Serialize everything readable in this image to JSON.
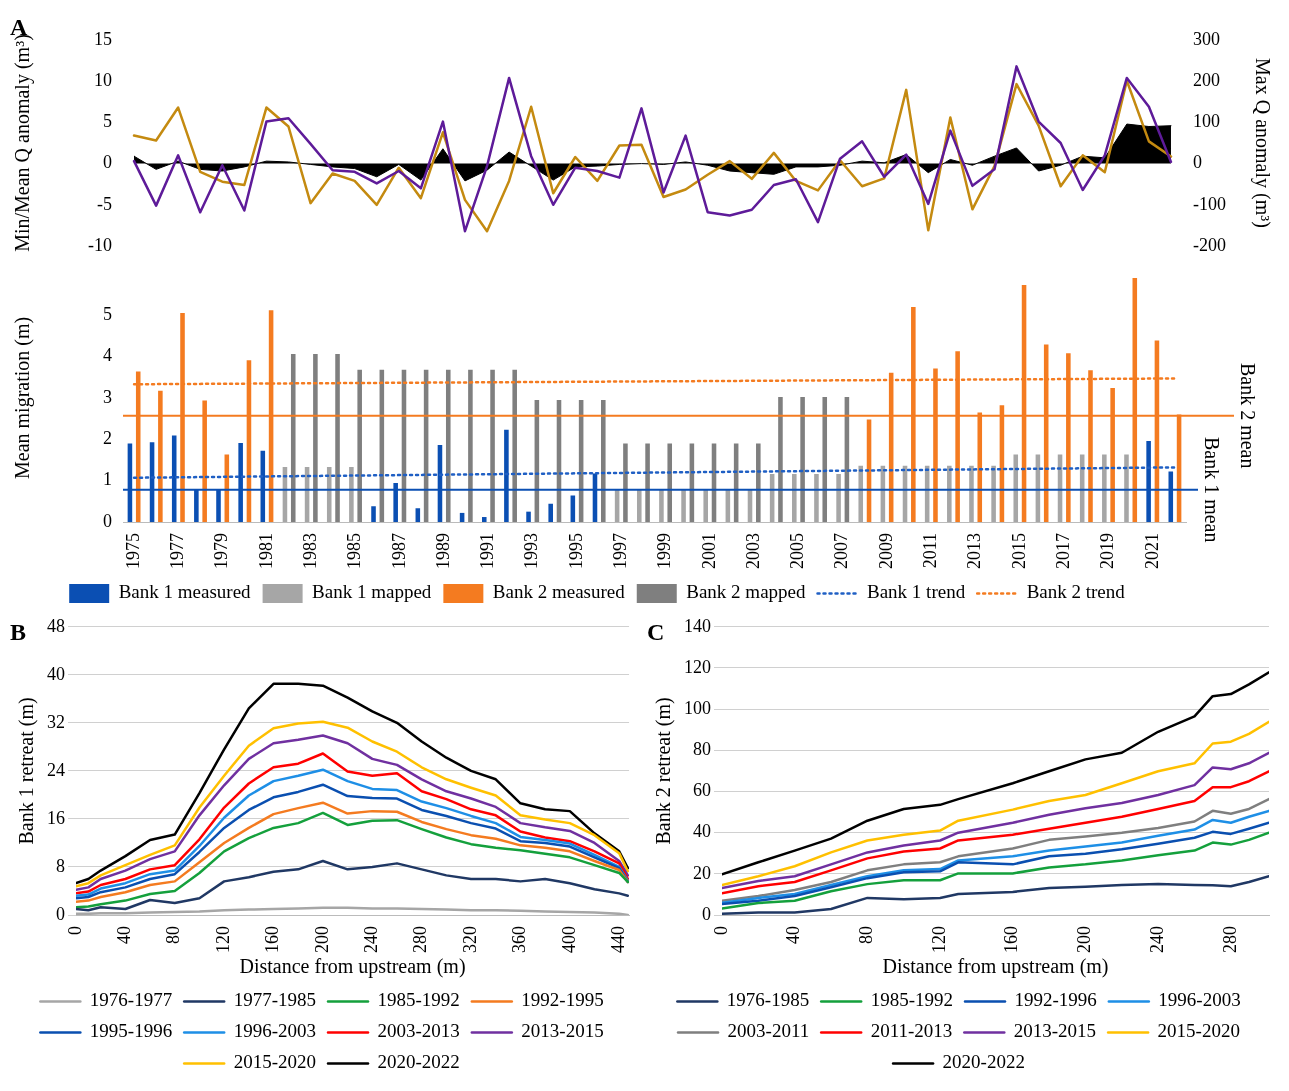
{
  "chart_data": [
    {
      "type": "line",
      "title": "A",
      "ylabel": "Min/Mean Q anomaly (m³)",
      "y2label": "Max Q anomaly (m³)",
      "categories": [
        null,
        null,
        null,
        null,
        null,
        null,
        null,
        null,
        null,
        null,
        null,
        null,
        null,
        null,
        null,
        null,
        null,
        null,
        null,
        null,
        null,
        null,
        null,
        null,
        null,
        null,
        null,
        null,
        null,
        null,
        null,
        null,
        null,
        null,
        null,
        null,
        null,
        null,
        null,
        null,
        null,
        null,
        null,
        null,
        null,
        null,
        null,
        null
      ],
      "series": [
        {
          "type": "area",
          "color": "#000000",
          "values": [
            0.9,
            -0.7,
            0.3,
            -0.7,
            -0.9,
            -0.4,
            0.3,
            0.2,
            -0.1,
            -0.4,
            -0.6,
            -1.6,
            -0.1,
            -2,
            1.8,
            -2.1,
            -0.8,
            1.4,
            -0.3,
            -2,
            -0.4,
            -0.3,
            -0.1,
            0,
            -0.1,
            0.2,
            -0.2,
            -0.9,
            -1.1,
            -1.3,
            -0.4,
            -0.4,
            -0.2,
            0.3,
            0.1,
            1.1,
            -1.1,
            0.5,
            -0.2,
            0.9,
            1.9,
            -0.9,
            -0.2,
            0.9,
            0.7,
            4.8,
            4.5,
            4.6
          ]
        },
        {
          "type": "line",
          "color": "#5e1b99",
          "values": [
            0.3,
            -5.1,
            1,
            -5.9,
            -0.2,
            -5.7,
            5.1,
            5.5,
            2.4,
            -0.8,
            -1,
            -2.4,
            -0.9,
            -3,
            5.1,
            -8.2,
            -0.3,
            10.4,
            0.9,
            -5,
            -0.5,
            -0.9,
            -1.7,
            6.7,
            -3.5,
            3.4,
            -5.9,
            -6.3,
            -5.6,
            -2.6,
            -1.9,
            -7.1,
            0.6,
            2.7,
            -1.6,
            1.1,
            -4.9,
            4,
            -2.7,
            -0.7,
            11.8,
            5.1,
            2.5,
            -3.2,
            1,
            10.4,
            6.9,
            0.2
          ]
        },
        {
          "type": "line",
          "color": "#c48a10",
          "axis": "y2",
          "values": [
            68,
            56,
            136,
            -20,
            -44,
            -52,
            136,
            90,
            -96,
            -24,
            -42,
            -100,
            -10,
            -84,
            76,
            -88,
            -164,
            -42,
            138,
            -72,
            16,
            -42,
            44,
            46,
            -81,
            -63,
            -27,
            6,
            -37,
            26,
            -42,
            -65,
            8,
            -55,
            -36,
            179,
            -162,
            112,
            -111,
            -6,
            193,
            92,
            -55,
            20,
            -21,
            201,
            54,
            17
          ]
        }
      ],
      "ylim": [
        -10,
        15
      ],
      "yticks": [
        -10,
        -5,
        0,
        5,
        10,
        15
      ],
      "y2lim": [
        -200,
        300
      ],
      "y2ticks": [
        -200,
        -100,
        0,
        100,
        200,
        300
      ]
    },
    {
      "type": "bar",
      "ylabel": "Mean migration (m)",
      "legend": "bottom",
      "categories": [
        "1975",
        null,
        "1977",
        null,
        "1979",
        null,
        "1981",
        null,
        "1983",
        null,
        "1985",
        null,
        "1987",
        null,
        "1989",
        null,
        "1991",
        null,
        "1993",
        null,
        "1995",
        null,
        "1997",
        null,
        "1999",
        null,
        "2001",
        null,
        "2003",
        null,
        "2005",
        null,
        "2007",
        null,
        "2009",
        null,
        "2011",
        null,
        "2013",
        null,
        "2015",
        null,
        "2017",
        null,
        "2019",
        null,
        "2021",
        null
      ],
      "series": [
        {
          "name": "Bank 1 measured",
          "color": "#0b4fb3",
          "values": [
            1.9,
            1.93,
            2.09,
            0.8,
            0.8,
            1.91,
            1.72,
            null,
            null,
            null,
            null,
            0.38,
            0.94,
            0.33,
            1.86,
            0.22,
            0.12,
            2.23,
            0.25,
            0.44,
            0.64,
            1.17,
            null,
            null,
            null,
            null,
            null,
            null,
            null,
            null,
            null,
            null,
            null,
            null,
            null,
            null,
            null,
            null,
            null,
            null,
            null,
            null,
            null,
            null,
            null,
            null,
            1.96,
            1.22
          ]
        },
        {
          "name": "Bank 1 mapped",
          "color": "#a6a6a6",
          "values": [
            null,
            null,
            null,
            null,
            null,
            null,
            null,
            1.33,
            1.33,
            1.33,
            1.33,
            null,
            null,
            null,
            null,
            null,
            null,
            null,
            null,
            null,
            null,
            null,
            0.78,
            0.78,
            0.78,
            0.78,
            0.78,
            0.78,
            0.78,
            1.16,
            1.16,
            1.16,
            1.16,
            1.36,
            1.36,
            1.36,
            1.36,
            1.36,
            1.36,
            1.36,
            1.63,
            1.63,
            1.63,
            1.63,
            1.63,
            1.63,
            null,
            null
          ]
        },
        {
          "name": "Bank 2 measured",
          "color": "#f47b20",
          "values": [
            3.64,
            3.17,
            5.05,
            2.94,
            1.63,
            3.91,
            5.12,
            null,
            null,
            null,
            null,
            null,
            null,
            null,
            null,
            null,
            null,
            null,
            null,
            null,
            null,
            null,
            null,
            null,
            null,
            null,
            null,
            null,
            null,
            null,
            null,
            null,
            null,
            2.48,
            3.61,
            5.2,
            3.71,
            4.13,
            2.65,
            2.82,
            5.73,
            4.29,
            4.08,
            3.67,
            3.24,
            5.9,
            4.39,
            2.6
          ]
        },
        {
          "name": "Bank 2 mapped",
          "color": "#7f7f7f",
          "values": [
            null,
            null,
            null,
            null,
            null,
            null,
            null,
            4.06,
            4.06,
            4.06,
            3.68,
            3.68,
            3.68,
            3.68,
            3.68,
            3.68,
            3.68,
            3.68,
            2.95,
            2.95,
            2.95,
            2.95,
            1.9,
            1.9,
            1.9,
            1.9,
            1.9,
            1.9,
            1.9,
            3.02,
            3.02,
            3.02,
            3.02,
            null,
            null,
            null,
            null,
            null,
            null,
            null,
            null,
            null,
            null,
            null,
            null,
            null,
            null,
            null
          ]
        },
        {
          "name": "Bank 1 trend",
          "type": "line",
          "line_style": "dotted",
          "color": "#1f5fc4",
          "values": [
            1.07,
            null,
            null,
            null,
            null,
            null,
            null,
            null,
            null,
            null,
            null,
            null,
            null,
            null,
            null,
            null,
            null,
            null,
            null,
            null,
            null,
            null,
            null,
            null,
            null,
            null,
            null,
            null,
            null,
            null,
            null,
            null,
            null,
            null,
            null,
            null,
            null,
            null,
            null,
            null,
            null,
            null,
            null,
            null,
            null,
            null,
            null,
            1.32
          ]
        },
        {
          "name": "Bank 2 trend",
          "type": "line",
          "line_style": "dotted",
          "color": "#f47b20",
          "values": [
            3.33,
            null,
            null,
            null,
            null,
            null,
            null,
            null,
            null,
            null,
            null,
            null,
            null,
            null,
            null,
            null,
            null,
            null,
            null,
            null,
            null,
            null,
            null,
            null,
            null,
            null,
            null,
            null,
            null,
            null,
            null,
            null,
            null,
            null,
            null,
            null,
            null,
            null,
            null,
            null,
            null,
            null,
            null,
            null,
            null,
            null,
            null,
            3.47
          ]
        }
      ],
      "ref_lines": [
        {
          "axis": "y",
          "value": 0.78,
          "label": "Bank 1 mean",
          "color": "#0b4fb3"
        },
        {
          "axis": "y",
          "value": 2.57,
          "label": "Bank 2 mean",
          "color": "#f47b20"
        }
      ],
      "ylim": [
        0,
        6
      ],
      "yticks": [
        0,
        1,
        2,
        3,
        4,
        5
      ]
    },
    {
      "type": "line",
      "title": "B",
      "xlabel": "Distance from upstream (m)",
      "ylabel": "Bank 1 retreat (m)",
      "legend": "bottom",
      "grid": "y",
      "x": [
        0,
        10,
        20,
        40,
        60,
        80,
        100,
        120,
        140,
        160,
        180,
        200,
        220,
        240,
        260,
        280,
        300,
        320,
        340,
        360,
        380,
        400,
        420,
        440,
        447
      ],
      "series": [
        {
          "name": "1976-1977",
          "color": "#a6a6a6",
          "values": [
            0.2,
            0.2,
            0.3,
            0.3,
            0.4,
            0.5,
            0.6,
            0.8,
            0.9,
            1,
            1.1,
            1.2,
            1.2,
            1.1,
            1.1,
            1,
            0.9,
            0.8,
            0.8,
            0.7,
            0.6,
            0.5,
            0.4,
            0.2,
            0
          ]
        },
        {
          "name": "1977-1985",
          "color": "#203864",
          "values": [
            1,
            0.8,
            1.3,
            1,
            2.5,
            2,
            2.8,
            5.6,
            6.3,
            7.2,
            7.6,
            9,
            7.6,
            8,
            8.6,
            7.6,
            6.6,
            6,
            6,
            5.6,
            6,
            5.3,
            4.3,
            3.6,
            3.2
          ]
        },
        {
          "name": "1985-1992",
          "color": "#14a03c",
          "values": [
            1.3,
            1.4,
            1.8,
            2.4,
            3.5,
            4,
            7,
            10.6,
            12.8,
            14.5,
            15.3,
            17,
            15,
            15.7,
            15.8,
            14.3,
            12.9,
            11.8,
            11.2,
            10.8,
            10.2,
            9.6,
            8.3,
            7,
            5.5
          ]
        },
        {
          "name": "1992-1995",
          "color": "#f47b20",
          "values": [
            2.2,
            2.4,
            3,
            3.8,
            5,
            5.6,
            8.8,
            12,
            14.5,
            16.8,
            17.8,
            18.7,
            16.9,
            17.3,
            17.2,
            15.5,
            14.3,
            13.3,
            12.7,
            11.6,
            11.2,
            10.6,
            9,
            7.5,
            5.5
          ]
        },
        {
          "name": "1995-1996",
          "color": "#0a4fb0",
          "values": [
            2.8,
            3,
            3.8,
            4.6,
            6,
            6.8,
            10.5,
            14.5,
            17.5,
            19.6,
            20.5,
            21.7,
            19.8,
            19.5,
            19.4,
            17.5,
            16.5,
            15.3,
            14.4,
            12.3,
            12,
            11.4,
            9.6,
            7.8,
            5.5
          ]
        },
        {
          "name": "1996-2003",
          "color": "#1e8fe6",
          "values": [
            3.2,
            3.4,
            4.4,
            5.3,
            6.8,
            7.4,
            11.5,
            16.2,
            19.9,
            22.3,
            23.2,
            24.2,
            22.3,
            21,
            20.8,
            18.9,
            17.8,
            16.5,
            15.3,
            13,
            12.5,
            11.9,
            10,
            8,
            5.7
          ]
        },
        {
          "name": "2003-2013",
          "color": "#ff0000",
          "values": [
            3.6,
            3.9,
            5,
            6,
            7.6,
            8.3,
            12.6,
            17.9,
            21.9,
            24.6,
            25.2,
            26.9,
            23.9,
            23.2,
            23.6,
            20.6,
            19.3,
            17.6,
            16.6,
            13.9,
            12.9,
            12.3,
            10.6,
            8.6,
            6
          ]
        },
        {
          "name": "2013-2015",
          "color": "#7030a0",
          "values": [
            4.2,
            4.6,
            6,
            7.4,
            9.3,
            10.6,
            16.6,
            21.6,
            26,
            28.6,
            29.2,
            29.9,
            28.6,
            26,
            25,
            22.6,
            20.6,
            19.4,
            18,
            15.3,
            14.6,
            14,
            12,
            9,
            6.6
          ]
        },
        {
          "name": "2015-2020",
          "color": "#ffc000",
          "values": [
            4.8,
            5.3,
            6.6,
            8.3,
            10,
            11.6,
            17.9,
            23.2,
            28.2,
            31.1,
            31.9,
            32.2,
            31.2,
            28.9,
            27.2,
            24.6,
            22.6,
            21.2,
            19.9,
            16.6,
            15.9,
            15.3,
            13.3,
            10.3,
            7.3
          ]
        },
        {
          "name": "2020-2022",
          "color": "#000000",
          "values": [
            5.3,
            6,
            7.4,
            9.8,
            12.5,
            13.4,
            20.3,
            27.6,
            34.4,
            38.5,
            38.5,
            38.2,
            36.2,
            33.9,
            32,
            28.9,
            26.2,
            24,
            22.6,
            18.6,
            17.6,
            17.3,
            13.6,
            10.6,
            7.8
          ]
        }
      ],
      "xlim": [
        0,
        448
      ],
      "xticks": [
        0,
        40,
        80,
        120,
        160,
        200,
        240,
        280,
        320,
        360,
        400,
        440
      ],
      "ylim": [
        0,
        48
      ],
      "yticks": [
        0,
        8,
        16,
        24,
        32,
        40,
        48
      ]
    },
    {
      "type": "line",
      "title": "C",
      "xlabel": "Distance from upstream (m)",
      "ylabel": "Bank 2 retreat (m)",
      "legend": "bottom",
      "grid": "y",
      "x": [
        0,
        20,
        40,
        60,
        80,
        100,
        120,
        130,
        160,
        180,
        200,
        220,
        240,
        260,
        270,
        280,
        290,
        301
      ],
      "series": [
        {
          "name": "1976-1985",
          "color": "#203864",
          "values": [
            0.6,
            1.2,
            1.2,
            2.9,
            8.3,
            7.7,
            8.3,
            10.2,
            11.2,
            13.1,
            13.7,
            14.6,
            15,
            14.6,
            14.4,
            14,
            16,
            18.8
          ]
        },
        {
          "name": "1985-1992",
          "color": "#14a03c",
          "values": [
            3.1,
            5.8,
            6.9,
            11.5,
            15,
            16.9,
            16.9,
            20.2,
            20.2,
            23.1,
            24.6,
            26.5,
            29,
            31.3,
            35.2,
            34.2,
            36.5,
            40
          ]
        },
        {
          "name": "1992-1996",
          "color": "#0a4fb0",
          "values": [
            5.4,
            6.9,
            9.2,
            13.5,
            17.9,
            20.8,
            21.2,
            25.6,
            24.6,
            28.5,
            29.8,
            31.9,
            34.6,
            37.5,
            40.4,
            39.4,
            41.9,
            44.8
          ]
        },
        {
          "name": "1996-2003",
          "color": "#1e8fe6",
          "values": [
            6,
            8.3,
            10.2,
            14.6,
            18.8,
            21.7,
            22.3,
            26.5,
            28.5,
            31.3,
            33.3,
            35.2,
            38.5,
            41.5,
            46.2,
            44.8,
            47.7,
            50.6
          ]
        },
        {
          "name": "2003-2011",
          "color": "#7f7f7f",
          "values": [
            6.9,
            9.2,
            12.1,
            16,
            21.7,
            24.6,
            25.6,
            28.5,
            32.3,
            36.5,
            38.1,
            40,
            42.3,
            45.4,
            50.6,
            49.2,
            51.5,
            56.3
          ]
        },
        {
          "name": "2011-2013",
          "color": "#ff0000",
          "values": [
            10.6,
            14,
            16,
            21.7,
            27.5,
            30.8,
            32.3,
            36.2,
            39,
            41.9,
            44.8,
            47.7,
            51.5,
            55.4,
            62.1,
            62.1,
            65,
            69.8
          ]
        },
        {
          "name": "2013-2015",
          "color": "#7030a0",
          "values": [
            13.1,
            16.5,
            18.8,
            24.6,
            30.4,
            33.8,
            36.2,
            40,
            44.8,
            48.7,
            51.9,
            54.4,
            58.3,
            63.1,
            71.7,
            70.8,
            73.7,
            78.8
          ]
        },
        {
          "name": "2015-2020",
          "color": "#ffc000",
          "values": [
            14.6,
            18.8,
            23.7,
            30.4,
            36.2,
            39,
            41,
            45.8,
            51.2,
            55.4,
            58.3,
            64,
            69.8,
            73.7,
            83.3,
            84.2,
            88,
            93.8
          ]
        },
        {
          "name": "2020-2022",
          "color": "#000000",
          "values": [
            19.8,
            25.6,
            31.3,
            37.1,
            45.8,
            51.5,
            53.5,
            56.3,
            64,
            69.8,
            75.6,
            78.8,
            89,
            96.5,
            106.3,
            107.3,
            112,
            117.9
          ]
        }
      ],
      "xlim": [
        0,
        301
      ],
      "xticks": [
        0,
        40,
        80,
        120,
        160,
        200,
        240,
        280
      ],
      "ylim": [
        0,
        140
      ],
      "yticks": [
        0,
        20,
        40,
        60,
        80,
        100,
        120,
        140
      ]
    }
  ]
}
